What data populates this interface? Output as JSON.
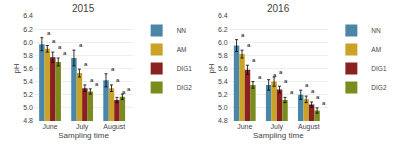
{
  "chart_data": [
    {
      "type": "bar",
      "title": "2015",
      "xlabel": "Sampling time",
      "ylabel": "pH",
      "categories": [
        "June",
        "July",
        "August"
      ],
      "series": [
        {
          "name": "NN",
          "color": "#4a86a8",
          "values": [
            5.97,
            5.76,
            5.42
          ],
          "errors": [
            0.1,
            0.12,
            0.1
          ],
          "annotations": [
            "a",
            "a",
            "a"
          ]
        },
        {
          "name": "AM",
          "color": "#c9a227",
          "values": [
            5.9,
            5.53,
            5.3
          ],
          "errors": [
            0.05,
            0.06,
            0.05
          ],
          "annotations": [
            "a",
            "a",
            "a"
          ]
        },
        {
          "name": "DIG1",
          "color": "#8b2020",
          "values": [
            5.77,
            5.3,
            5.12
          ],
          "errors": [
            0.08,
            0.05,
            0.04
          ],
          "annotations": [
            "a",
            "a",
            "a"
          ]
        },
        {
          "name": "DIG2",
          "color": "#7a8c1e",
          "values": [
            5.7,
            5.25,
            5.17
          ],
          "errors": [
            0.06,
            0.04,
            0.04
          ],
          "annotations": [
            "a",
            "a",
            "a"
          ]
        }
      ],
      "ylim": [
        4.8,
        6.4
      ],
      "yticks": [
        4.8,
        {
          "value": 5.0,
          "label": "5.0"
        },
        5.2,
        5.4,
        5.6,
        5.8,
        {
          "value": 6.0,
          "label": "6.0"
        },
        6.2,
        6.4
      ],
      "grid": true,
      "legend": "upper right"
    },
    {
      "type": "bar",
      "title": "2016",
      "xlabel": "Sampling time",
      "ylabel": "pH",
      "categories": [
        "June",
        "July",
        "August"
      ],
      "series": [
        {
          "name": "NN",
          "color": "#4a86a8",
          "values": [
            5.95,
            5.35,
            5.2
          ],
          "errors": [
            0.09,
            0.08,
            0.07
          ],
          "annotations": [
            "a",
            "a",
            "a"
          ]
        },
        {
          "name": "AM",
          "color": "#c9a227",
          "values": [
            5.82,
            5.4,
            5.13
          ],
          "errors": [
            0.06,
            0.07,
            0.05
          ],
          "annotations": [
            "a",
            "a",
            "a"
          ]
        },
        {
          "name": "DIG1",
          "color": "#8b2020",
          "values": [
            5.58,
            5.28,
            5.05
          ],
          "errors": [
            0.07,
            0.05,
            0.04
          ],
          "annotations": [
            "a",
            "a",
            "a"
          ]
        },
        {
          "name": "DIG2",
          "color": "#7a8c1e",
          "values": [
            5.35,
            5.12,
            4.96
          ],
          "errors": [
            0.05,
            0.04,
            0.04
          ],
          "annotations": [
            "a",
            "a",
            "a"
          ]
        }
      ],
      "ylim": [
        4.8,
        6.4
      ],
      "yticks": [
        4.8,
        {
          "value": 5.0,
          "label": "5.0"
        },
        5.2,
        5.4,
        5.6,
        5.8,
        {
          "value": 6.0,
          "label": "6.0"
        },
        6.2,
        6.4
      ],
      "grid": true,
      "legend": "upper right"
    }
  ]
}
